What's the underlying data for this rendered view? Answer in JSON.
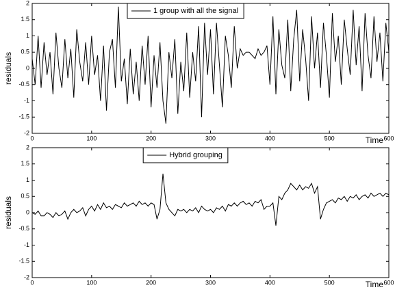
{
  "chart_data": [
    {
      "type": "line",
      "ylabel": "residuals",
      "xlabel": "Time",
      "x": [
        0,
        5,
        10,
        15,
        20,
        25,
        30,
        35,
        40,
        45,
        50,
        55,
        60,
        65,
        70,
        75,
        80,
        85,
        90,
        95,
        100,
        105,
        110,
        115,
        120,
        125,
        130,
        135,
        140,
        145,
        150,
        155,
        160,
        165,
        170,
        175,
        180,
        185,
        190,
        195,
        200,
        205,
        210,
        215,
        220,
        225,
        230,
        235,
        240,
        245,
        250,
        255,
        260,
        265,
        270,
        275,
        280,
        285,
        290,
        295,
        300,
        305,
        310,
        315,
        320,
        325,
        330,
        335,
        340,
        345,
        350,
        355,
        360,
        365,
        370,
        375,
        380,
        385,
        390,
        395,
        400,
        405,
        410,
        415,
        420,
        425,
        430,
        435,
        440,
        445,
        450,
        455,
        460,
        465,
        470,
        475,
        480,
        485,
        490,
        495,
        500,
        505,
        510,
        515,
        520,
        525,
        530,
        535,
        540,
        545,
        550,
        555,
        560,
        565,
        570,
        575,
        580,
        585,
        590,
        595,
        600
      ],
      "series": [
        {
          "name": "1 group with all the signal",
          "color": "#000000",
          "values": [
            0.3,
            -0.5,
            1.0,
            -0.6,
            0.8,
            -0.2,
            0.5,
            -0.8,
            1.1,
            0.0,
            -0.6,
            0.9,
            -0.3,
            0.6,
            -0.9,
            1.2,
            0.2,
            -0.4,
            0.8,
            -0.5,
            1.0,
            -0.2,
            0.4,
            -1.0,
            0.7,
            -1.3,
            0.5,
            0.9,
            -0.6,
            1.9,
            -0.4,
            0.3,
            -1.1,
            0.6,
            -0.8,
            0.2,
            -1.0,
            0.7,
            -0.5,
            1.0,
            -1.2,
            0.4,
            -0.6,
            0.8,
            -1.0,
            -1.7,
            0.5,
            -0.3,
            0.9,
            -1.4,
            0.2,
            -0.7,
            1.1,
            -0.9,
            0.5,
            -0.4,
            1.3,
            -1.5,
            1.4,
            -0.2,
            1.2,
            -0.8,
            1.4,
            0.1,
            -1.2,
            1.0,
            0.4,
            -0.6,
            1.3,
            0.0,
            0.6,
            0.4,
            0.5,
            0.5,
            0.4,
            0.3,
            0.6,
            0.4,
            0.5,
            0.7,
            -0.5,
            1.6,
            -0.8,
            1.2,
            0.1,
            -0.3,
            1.5,
            -0.7,
            0.9,
            1.8,
            -0.4,
            1.2,
            0.3,
            -1.0,
            1.6,
            0.0,
            1.1,
            -0.6,
            1.4,
            0.4,
            -0.9,
            1.7,
            0.2,
            1.0,
            -0.5,
            1.5,
            0.6,
            -0.2,
            1.8,
            0.1,
            1.3,
            -0.7,
            1.7,
            0.4,
            -0.3,
            1.6,
            0.2,
            1.1,
            -0.4,
            1.4,
            0.5
          ]
        }
      ],
      "xlim": [
        0,
        600
      ],
      "xticks": [
        0,
        100,
        200,
        300,
        400,
        500,
        600
      ],
      "ylim": [
        -2,
        2
      ],
      "yticks": [
        2,
        1.5,
        1,
        0.5,
        0,
        -0.5,
        -1,
        -1.5,
        -2
      ],
      "legend": "top"
    },
    {
      "type": "line",
      "ylabel": "residuals",
      "xlabel": "Time",
      "x": [
        0,
        5,
        10,
        15,
        20,
        25,
        30,
        35,
        40,
        45,
        50,
        55,
        60,
        65,
        70,
        75,
        80,
        85,
        90,
        95,
        100,
        105,
        110,
        115,
        120,
        125,
        130,
        135,
        140,
        145,
        150,
        155,
        160,
        165,
        170,
        175,
        180,
        185,
        190,
        195,
        200,
        205,
        210,
        215,
        220,
        225,
        230,
        235,
        240,
        245,
        250,
        255,
        260,
        265,
        270,
        275,
        280,
        285,
        290,
        295,
        300,
        305,
        310,
        315,
        320,
        325,
        330,
        335,
        340,
        345,
        350,
        355,
        360,
        365,
        370,
        375,
        380,
        385,
        390,
        395,
        400,
        405,
        410,
        415,
        420,
        425,
        430,
        435,
        440,
        445,
        450,
        455,
        460,
        465,
        470,
        475,
        480,
        485,
        490,
        495,
        500,
        505,
        510,
        515,
        520,
        525,
        530,
        535,
        540,
        545,
        550,
        555,
        560,
        565,
        570,
        575,
        580,
        585,
        590,
        595,
        600
      ],
      "series": [
        {
          "name": "Hybrid grouping",
          "color": "#000000",
          "values": [
            0.0,
            -0.05,
            0.05,
            -0.1,
            -0.1,
            0.0,
            -0.05,
            -0.15,
            0.0,
            -0.1,
            -0.05,
            0.05,
            -0.2,
            0.0,
            0.1,
            0.0,
            0.05,
            0.15,
            -0.1,
            0.1,
            0.2,
            0.05,
            0.25,
            0.1,
            0.3,
            0.15,
            0.2,
            0.1,
            0.25,
            0.2,
            0.15,
            0.3,
            0.2,
            0.25,
            0.3,
            0.2,
            0.35,
            0.25,
            0.3,
            0.2,
            0.3,
            0.25,
            -0.2,
            0.1,
            1.2,
            0.3,
            0.1,
            0.0,
            -0.1,
            0.1,
            0.05,
            0.1,
            0.0,
            0.1,
            0.05,
            0.15,
            0.0,
            0.2,
            0.1,
            0.05,
            0.1,
            0.0,
            0.15,
            0.1,
            0.2,
            0.05,
            0.25,
            0.2,
            0.3,
            0.2,
            0.3,
            0.35,
            0.25,
            0.3,
            0.2,
            0.35,
            0.3,
            0.4,
            0.1,
            0.2,
            0.2,
            0.3,
            -0.4,
            0.5,
            0.4,
            0.6,
            0.7,
            0.9,
            0.8,
            0.7,
            0.85,
            0.7,
            0.8,
            0.75,
            0.9,
            0.6,
            0.8,
            -0.2,
            0.1,
            0.3,
            0.35,
            0.4,
            0.3,
            0.45,
            0.4,
            0.5,
            0.35,
            0.5,
            0.45,
            0.55,
            0.4,
            0.5,
            0.55,
            0.45,
            0.6,
            0.5,
            0.55,
            0.6,
            0.5,
            0.6,
            0.55
          ]
        }
      ],
      "xlim": [
        0,
        600
      ],
      "xticks": [
        0,
        100,
        200,
        300,
        400,
        500,
        600
      ],
      "ylim": [
        -2,
        2
      ],
      "yticks": [
        2,
        1.5,
        1,
        0.5,
        0,
        -0.5,
        -1,
        -1.5,
        -2
      ],
      "legend": "top"
    }
  ]
}
